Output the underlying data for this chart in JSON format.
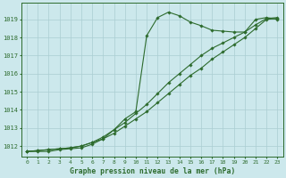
{
  "background_color": "#cce8ec",
  "plot_bg_color": "#cce8ec",
  "grid_color": "#aacdd2",
  "line_color": "#2d6b2d",
  "marker_color": "#2d6b2d",
  "title": "Graphe pression niveau de la mer (hPa)",
  "xlabel_ticks": [
    0,
    1,
    2,
    3,
    4,
    5,
    6,
    7,
    8,
    9,
    10,
    11,
    12,
    13,
    14,
    15,
    16,
    17,
    18,
    19,
    20,
    21,
    22,
    23
  ],
  "ylim": [
    1011.4,
    1019.9
  ],
  "yticks": [
    1012,
    1013,
    1014,
    1015,
    1016,
    1017,
    1018,
    1019
  ],
  "series1_x": [
    0,
    1,
    2,
    3,
    4,
    5,
    6,
    7,
    8,
    9,
    10,
    11,
    12,
    13,
    14,
    15,
    16,
    17,
    18,
    19,
    20,
    21,
    22,
    23
  ],
  "series1_y": [
    1011.7,
    1011.7,
    1011.7,
    1011.8,
    1011.85,
    1011.9,
    1012.1,
    1012.4,
    1012.9,
    1013.5,
    1013.9,
    1018.1,
    1019.1,
    1019.4,
    1019.2,
    1018.85,
    1018.65,
    1018.4,
    1018.35,
    1018.3,
    1018.3,
    1019.0,
    1019.1,
    1019.0
  ],
  "series2_x": [
    0,
    1,
    2,
    3,
    4,
    5,
    6,
    7,
    8,
    9,
    10,
    11,
    12,
    13,
    14,
    15,
    16,
    17,
    18,
    19,
    20,
    21,
    22,
    23
  ],
  "series2_y": [
    1011.7,
    1011.75,
    1011.8,
    1011.85,
    1011.9,
    1012.0,
    1012.2,
    1012.4,
    1012.7,
    1013.1,
    1013.5,
    1013.9,
    1014.4,
    1014.9,
    1015.4,
    1015.9,
    1016.3,
    1016.8,
    1017.2,
    1017.6,
    1018.0,
    1018.5,
    1019.0,
    1019.05
  ],
  "series3_x": [
    0,
    1,
    2,
    3,
    4,
    5,
    6,
    7,
    8,
    9,
    10,
    11,
    12,
    13,
    14,
    15,
    16,
    17,
    18,
    19,
    20,
    21,
    22,
    23
  ],
  "series3_y": [
    1011.7,
    1011.75,
    1011.8,
    1011.85,
    1011.9,
    1012.0,
    1012.2,
    1012.5,
    1012.9,
    1013.3,
    1013.8,
    1014.3,
    1014.9,
    1015.5,
    1016.0,
    1016.5,
    1017.0,
    1017.4,
    1017.7,
    1018.0,
    1018.3,
    1018.7,
    1019.05,
    1019.1
  ]
}
